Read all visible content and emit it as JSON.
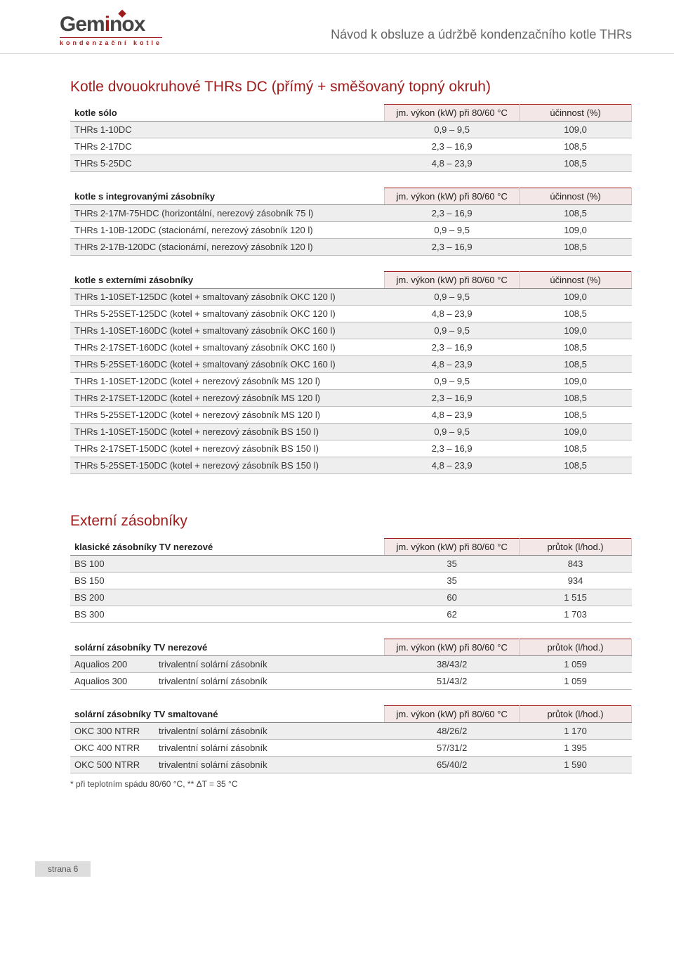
{
  "header": {
    "logo_main_pre": "Gem",
    "logo_main_accent": "i",
    "logo_main_post": "nox",
    "logo_sub": "kondenzační kotle",
    "doc_title": "Návod k obsluze a údržbě kondenzačního kotle THRs"
  },
  "section1": {
    "title": "Kotle dvouokruhové THRs DC (přímý + směšovaný topný okruh)",
    "tables": [
      {
        "head": [
          "kotle sólo",
          "jm. výkon (kW) při 80/60 °C",
          "účinnost (%)"
        ],
        "rows": [
          {
            "c1": "THRs 1-10DC",
            "c2": "0,9 – 9,5",
            "c3": "109,0",
            "alt": true
          },
          {
            "c1": "THRs 2-17DC",
            "c2": "2,3 – 16,9",
            "c3": "108,5",
            "alt": false
          },
          {
            "c1": "THRs 5-25DC",
            "c2": "4,8 – 23,9",
            "c3": "108,5",
            "alt": true
          }
        ]
      },
      {
        "head": [
          "kotle s integrovanými zásobníky",
          "jm. výkon (kW) při 80/60 °C",
          "účinnost (%)"
        ],
        "rows": [
          {
            "c1": "THRs 2-17M-75HDC (horizontální, nerezový zásobník 75 l)",
            "c2": "2,3 – 16,9",
            "c3": "108,5",
            "alt": true
          },
          {
            "c1": "THRs 1-10B-120DC (stacionární, nerezový zásobník 120 l)",
            "c2": "0,9 – 9,5",
            "c3": "109,0",
            "alt": false
          },
          {
            "c1": "THRs 2-17B-120DC (stacionární, nerezový zásobník 120 l)",
            "c2": "2,3 – 16,9",
            "c3": "108,5",
            "alt": true
          }
        ]
      },
      {
        "head": [
          "kotle s externími zásobníky",
          "jm. výkon (kW) při 80/60 °C",
          "účinnost (%)"
        ],
        "rows": [
          {
            "c1": "THRs 1-10SET-125DC (kotel + smaltovaný zásobník OKC 120 l)",
            "c2": "0,9 – 9,5",
            "c3": "109,0",
            "alt": true
          },
          {
            "c1": "THRs 5-25SET-125DC (kotel + smaltovaný zásobník OKC 120 l)",
            "c2": "4,8 – 23,9",
            "c3": "108,5",
            "alt": false
          },
          {
            "c1": "THRs 1-10SET-160DC (kotel + smaltovaný zásobník OKC 160 l)",
            "c2": "0,9 – 9,5",
            "c3": "109,0",
            "alt": true
          },
          {
            "c1": "THRs 2-17SET-160DC (kotel + smaltovaný zásobník OKC 160 l)",
            "c2": "2,3 – 16,9",
            "c3": "108,5",
            "alt": false
          },
          {
            "c1": "THRs 5-25SET-160DC (kotel + smaltovaný zásobník OKC 160 l)",
            "c2": "4,8 – 23,9",
            "c3": "108,5",
            "alt": true
          },
          {
            "c1": "THRs 1-10SET-120DC (kotel + nerezový zásobník MS 120 l)",
            "c2": "0,9 – 9,5",
            "c3": "109,0",
            "alt": false
          },
          {
            "c1": "THRs 2-17SET-120DC (kotel + nerezový zásobník MS 120 l)",
            "c2": "2,3 – 16,9",
            "c3": "108,5",
            "alt": true
          },
          {
            "c1": "THRs 5-25SET-120DC (kotel + nerezový zásobník MS 120 l)",
            "c2": "4,8 – 23,9",
            "c3": "108,5",
            "alt": false
          },
          {
            "c1": "THRs 1-10SET-150DC (kotel + nerezový zásobník BS 150 l)",
            "c2": "0,9  –  9,5",
            "c3": "109,0",
            "alt": true
          },
          {
            "c1": "THRs 2-17SET-150DC (kotel + nerezový zásobník BS 150 l)",
            "c2": "2,3 – 16,9",
            "c3": "108,5",
            "alt": false
          },
          {
            "c1": "THRs 5-25SET-150DC (kotel + nerezový zásobník BS 150 l)",
            "c2": "4,8 – 23,9",
            "c3": "108,5",
            "alt": true
          }
        ]
      }
    ]
  },
  "section2": {
    "title": "Externí zásobníky",
    "tables": [
      {
        "head": [
          "klasické zásobníky TV nerezové",
          "jm. výkon (kW) při 80/60 °C",
          "průtok (l/hod.)"
        ],
        "rows": [
          {
            "c1": "BS 100",
            "c2": "35",
            "c3": "843",
            "alt": true
          },
          {
            "c1": "BS 150",
            "c2": "35",
            "c3": "934",
            "alt": false
          },
          {
            "c1": "BS 200",
            "c2": "60",
            "c3": "1 515",
            "alt": true
          },
          {
            "c1": "BS 300",
            "c2": "62",
            "c3": "1 703",
            "alt": false
          }
        ]
      },
      {
        "head": [
          "solární zásobníky TV nerezové",
          "jm. výkon (kW) při 80/60 °C",
          "průtok (l/hod.)"
        ],
        "rows": [
          {
            "name": "Aqualios 200",
            "desc": "trivalentní solární zásobník",
            "c2": "38/43/2",
            "c3": "1 059",
            "alt": true
          },
          {
            "name": "Aqualios 300",
            "desc": "trivalentní solární zásobník",
            "c2": "51/43/2",
            "c3": "1 059",
            "alt": false
          }
        ]
      },
      {
        "head": [
          "solární zásobníky TV smaltované",
          "jm. výkon (kW) při 80/60 °C",
          "průtok (l/hod.)"
        ],
        "rows": [
          {
            "name": "OKC 300 NTRR",
            "desc": "trivalentní solární zásobník",
            "c2": "48/26/2",
            "c3": "1 170",
            "alt": true
          },
          {
            "name": "OKC 400 NTRR",
            "desc": "trivalentní solární zásobník",
            "c2": "57/31/2",
            "c3": "1 395",
            "alt": false
          },
          {
            "name": "OKC 500 NTRR",
            "desc": "trivalentní solární zásobník",
            "c2": "65/40/2",
            "c3": "1 590",
            "alt": true
          }
        ]
      }
    ],
    "footnote": "*  při teplotním spádu 80/60 °C, **  ΔT = 35 °C"
  },
  "footer": {
    "page": "strana 6"
  },
  "colors": {
    "brand": "#a01c1c",
    "header_box_bg": "#f3e7e7",
    "row_alt": "#eeeeee",
    "rule": "#bbbbbb"
  }
}
